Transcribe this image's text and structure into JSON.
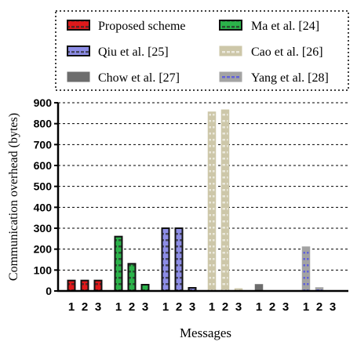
{
  "chart_data": {
    "type": "bar",
    "xlabel": "Messages",
    "ylabel": "Communication overhead (bytes)",
    "ylim": [
      0,
      900
    ],
    "yticks": [
      "0",
      "100",
      "200",
      "300",
      "400",
      "500",
      "600",
      "700",
      "800",
      "900"
    ],
    "categories": [
      "1",
      "2",
      "3"
    ],
    "grid": "horizontal dashed",
    "legend_position": "top",
    "series": [
      {
        "name": "Proposed scheme",
        "values": [
          50,
          50,
          50
        ],
        "color": "#e0191b",
        "pattern": "dashes-dark"
      },
      {
        "name": "Ma et al. [24]",
        "values": [
          260,
          130,
          30
        ],
        "color": "#2bb34a",
        "pattern": "dashes-dark"
      },
      {
        "name": "Qiu et al. [25]",
        "values": [
          300,
          300,
          15
        ],
        "color": "#8d8de6",
        "pattern": "dashes-dark"
      },
      {
        "name": "Cao et al. [26]",
        "values": [
          855,
          865,
          10
        ],
        "color": "#cdc7a9",
        "pattern": "dashes-light"
      },
      {
        "name": "Chow et al. [27]",
        "values": [
          30,
          0,
          0
        ],
        "color": "#6d6d6d",
        "pattern": "none"
      },
      {
        "name": "Yang et al. [28]",
        "values": [
          210,
          15,
          0
        ],
        "color": "#a3a3a3",
        "pattern": "dashes-blue"
      }
    ]
  }
}
